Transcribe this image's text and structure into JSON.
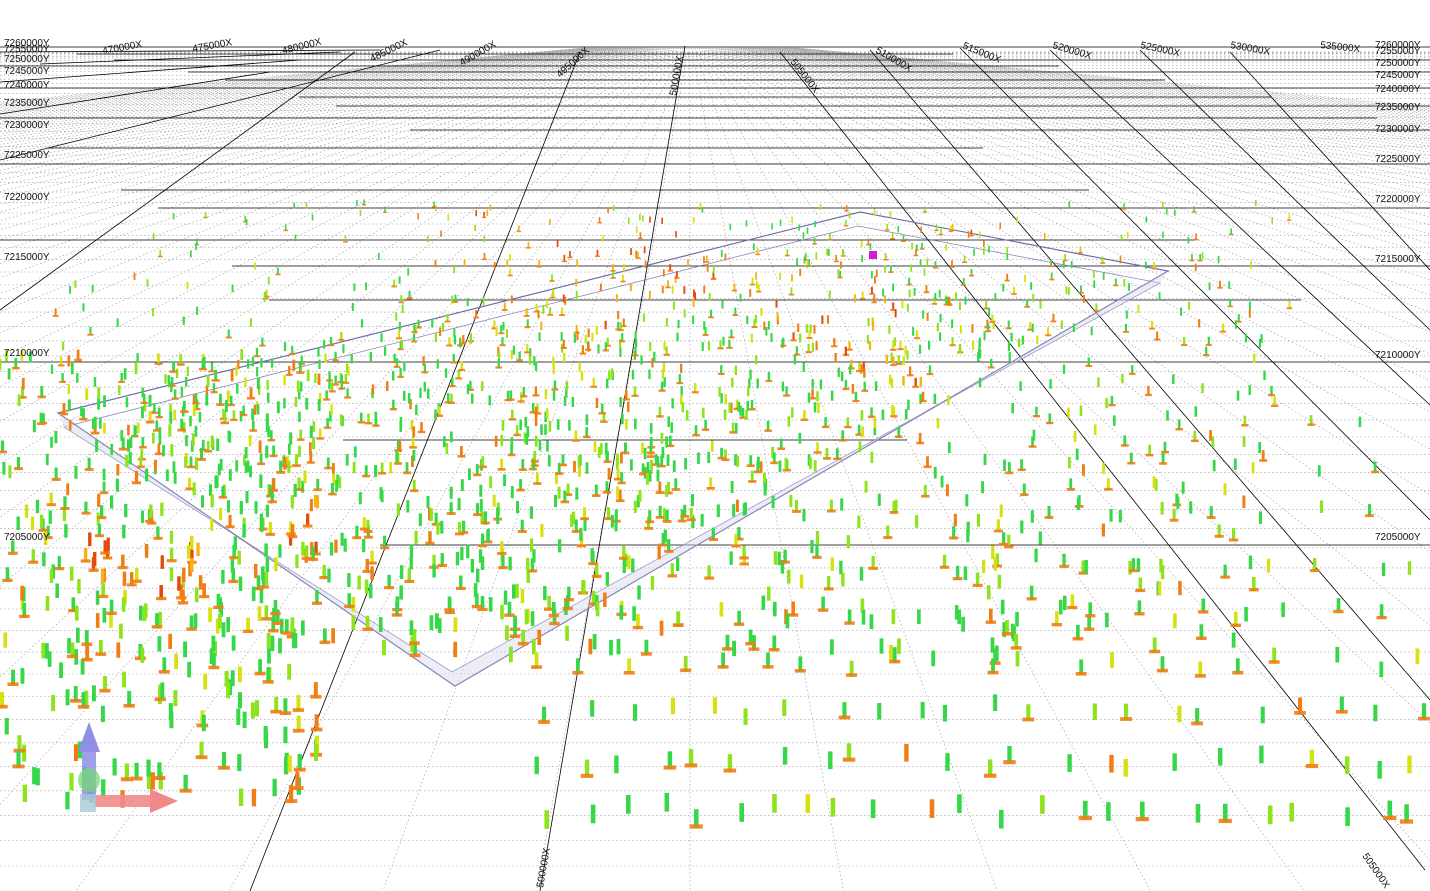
{
  "viewer": {
    "background": "#ffffff",
    "grid_major_color": "#000000",
    "grid_minor_color": "#9a9a9a",
    "boundary_color": "#6f6fa8",
    "boundary_fill": "#d8d8ee",
    "highlight_color": "#d21dd2",
    "colormap": [
      "#18c8a8",
      "#36d84a",
      "#8ee41c",
      "#d8e010",
      "#f5b212",
      "#f07e14",
      "#e24a0e"
    ]
  },
  "axes": {
    "x_labels": [
      "470000X",
      "475000X",
      "480000X",
      "485000X",
      "490000X",
      "495000X",
      "500000X",
      "505000X",
      "510000X",
      "515000X",
      "520000X",
      "525000X",
      "530000X",
      "535000X"
    ],
    "x_front_labels": [
      "500000X",
      "505000X"
    ],
    "y_labels_left": [
      "7260000Y",
      "7255000Y",
      "7250000Y",
      "7245000Y",
      "7240000Y",
      "7235000Y",
      "7230000Y",
      "7225000Y",
      "7220000Y",
      "7215000Y",
      "7210000Y",
      "7205000Y"
    ],
    "y_labels_right": [
      "7260000Y",
      "7255000Y",
      "7250000Y",
      "7245000Y",
      "7240000Y",
      "7235000Y",
      "7230000Y",
      "7225000Y",
      "7220000Y",
      "7215000Y",
      "7210000Y",
      "7205000Y"
    ]
  },
  "orientation": {
    "x_axis_color": "#f08a8a",
    "y_axis_color": "#78d878",
    "z_axis_color": "#8f8fe6"
  }
}
